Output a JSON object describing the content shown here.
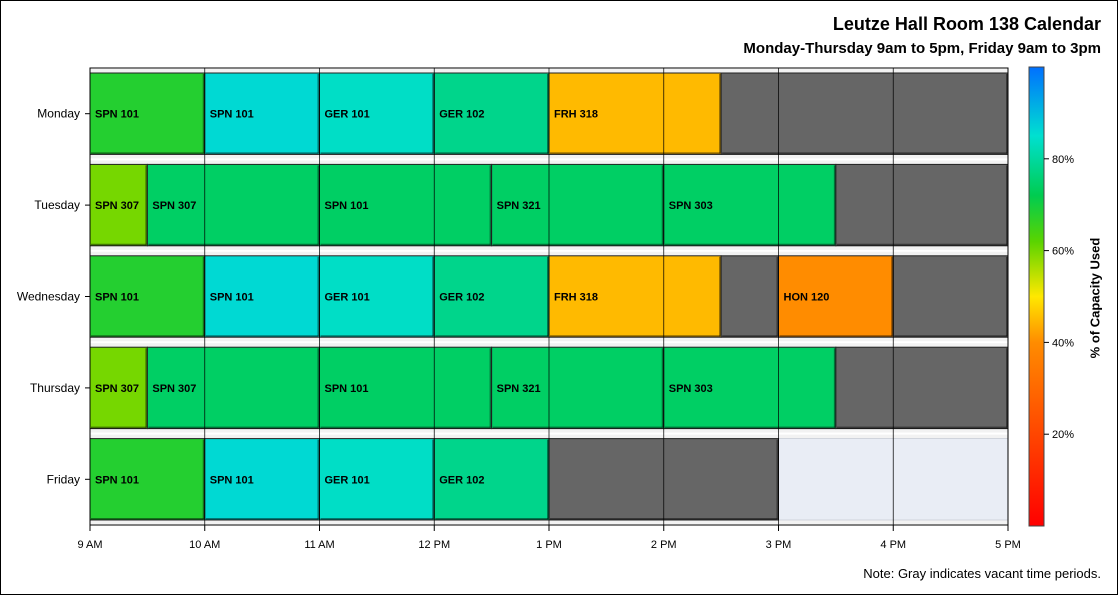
{
  "chart_data": {
    "type": "timeline",
    "title": "Leutze Hall Room 138 Calendar",
    "subtitle": "Monday-Thursday 9am to 5pm, Friday 9am to 3pm",
    "note": "Note: Gray indicates vacant time periods.",
    "x_range": [
      9,
      17
    ],
    "x_ticks": [
      {
        "value": 9,
        "label": "9 AM"
      },
      {
        "value": 10,
        "label": "10 AM"
      },
      {
        "value": 11,
        "label": "11 AM"
      },
      {
        "value": 12,
        "label": "12 PM"
      },
      {
        "value": 13,
        "label": "1 PM"
      },
      {
        "value": 14,
        "label": "2 PM"
      },
      {
        "value": 15,
        "label": "3 PM"
      },
      {
        "value": 16,
        "label": "4 PM"
      },
      {
        "value": 17,
        "label": "5 PM"
      }
    ],
    "days": [
      {
        "name": "Monday",
        "schedule_end": 17,
        "blocks": [
          {
            "start": 9,
            "end": 10,
            "course": "SPN 101",
            "capacity_pct": 68
          },
          {
            "start": 10,
            "end": 11,
            "course": "SPN 101",
            "capacity_pct": 86
          },
          {
            "start": 11,
            "end": 12,
            "course": "GER 101",
            "capacity_pct": 84
          },
          {
            "start": 12,
            "end": 13,
            "course": "GER 102",
            "capacity_pct": 78
          },
          {
            "start": 13,
            "end": 14.5,
            "course": "FRH 318",
            "capacity_pct": 45
          },
          {
            "start": 14.5,
            "end": 17,
            "course": "",
            "vacant": true
          }
        ]
      },
      {
        "name": "Tuesday",
        "schedule_end": 17,
        "blocks": [
          {
            "start": 9,
            "end": 9.5,
            "course": "SPN 307",
            "capacity_pct": 60
          },
          {
            "start": 9.5,
            "end": 11,
            "course": "SPN 307",
            "capacity_pct": 74
          },
          {
            "start": 11,
            "end": 12.5,
            "course": "SPN 101",
            "capacity_pct": 74
          },
          {
            "start": 12.5,
            "end": 14,
            "course": "SPN 321",
            "capacity_pct": 74
          },
          {
            "start": 14,
            "end": 15.5,
            "course": "SPN 303",
            "capacity_pct": 74
          },
          {
            "start": 15.5,
            "end": 17,
            "course": "",
            "vacant": true
          }
        ]
      },
      {
        "name": "Wednesday",
        "schedule_end": 17,
        "blocks": [
          {
            "start": 9,
            "end": 10,
            "course": "SPN 101",
            "capacity_pct": 68
          },
          {
            "start": 10,
            "end": 11,
            "course": "SPN 101",
            "capacity_pct": 86
          },
          {
            "start": 11,
            "end": 12,
            "course": "GER 101",
            "capacity_pct": 84
          },
          {
            "start": 12,
            "end": 13,
            "course": "GER 102",
            "capacity_pct": 78
          },
          {
            "start": 13,
            "end": 14.5,
            "course": "FRH 318",
            "capacity_pct": 45
          },
          {
            "start": 14.5,
            "end": 15,
            "course": "",
            "vacant": true
          },
          {
            "start": 15,
            "end": 16,
            "course": "HON 120",
            "capacity_pct": 40
          },
          {
            "start": 16,
            "end": 17,
            "course": "",
            "vacant": true
          }
        ]
      },
      {
        "name": "Thursday",
        "schedule_end": 17,
        "blocks": [
          {
            "start": 9,
            "end": 9.5,
            "course": "SPN 307",
            "capacity_pct": 60
          },
          {
            "start": 9.5,
            "end": 11,
            "course": "SPN 307",
            "capacity_pct": 74
          },
          {
            "start": 11,
            "end": 12.5,
            "course": "SPN 101",
            "capacity_pct": 74
          },
          {
            "start": 12.5,
            "end": 14,
            "course": "SPN 321",
            "capacity_pct": 74
          },
          {
            "start": 14,
            "end": 15.5,
            "course": "SPN 303",
            "capacity_pct": 74
          },
          {
            "start": 15.5,
            "end": 17,
            "course": "",
            "vacant": true
          }
        ]
      },
      {
        "name": "Friday",
        "schedule_end": 15,
        "blocks": [
          {
            "start": 9,
            "end": 10,
            "course": "SPN 101",
            "capacity_pct": 68
          },
          {
            "start": 10,
            "end": 11,
            "course": "SPN 101",
            "capacity_pct": 86
          },
          {
            "start": 11,
            "end": 12,
            "course": "GER 101",
            "capacity_pct": 84
          },
          {
            "start": 12,
            "end": 13,
            "course": "GER 102",
            "capacity_pct": 78
          },
          {
            "start": 13,
            "end": 15,
            "course": "",
            "vacant": true
          }
        ]
      }
    ],
    "colorbar": {
      "title": "% of Capacity Used",
      "range": [
        0,
        100
      ],
      "ticks": [
        {
          "value": 20,
          "label": "20%"
        },
        {
          "value": 40,
          "label": "40%"
        },
        {
          "value": 60,
          "label": "60%"
        },
        {
          "value": 80,
          "label": "80%"
        }
      ],
      "stops": [
        {
          "value": 0,
          "color": "#ff0000"
        },
        {
          "value": 40,
          "color": "#ff8c00"
        },
        {
          "value": 50,
          "color": "#ffe800"
        },
        {
          "value": 62,
          "color": "#5ad400"
        },
        {
          "value": 72,
          "color": "#00cc50"
        },
        {
          "value": 85,
          "color": "#00e0d0"
        },
        {
          "value": 100,
          "color": "#0070ff"
        }
      ]
    },
    "colors": {
      "vacant": "#666666",
      "off_schedule": "#e9edf5",
      "row_background": "#f2f2f2"
    }
  }
}
